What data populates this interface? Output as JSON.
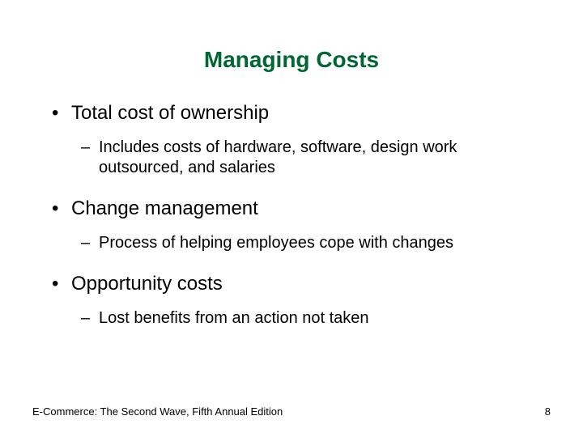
{
  "title": {
    "text": "Managing Costs",
    "color": "#006633",
    "fontsize": 28
  },
  "body_color": "#000000",
  "l1_fontsize": 24,
  "l2_fontsize": 20,
  "bullets": [
    {
      "label": "Total cost of ownership",
      "sub": "Includes costs of hardware, software, design work outsourced, and salaries"
    },
    {
      "label": "Change management",
      "sub": "Process of helping employees cope with changes"
    },
    {
      "label": "Opportunity costs",
      "sub": "Lost benefits from an action not taken"
    }
  ],
  "footer": {
    "text": "E-Commerce: The Second Wave, Fifth Annual Edition",
    "page": "8",
    "fontsize": 13,
    "color": "#000000"
  }
}
